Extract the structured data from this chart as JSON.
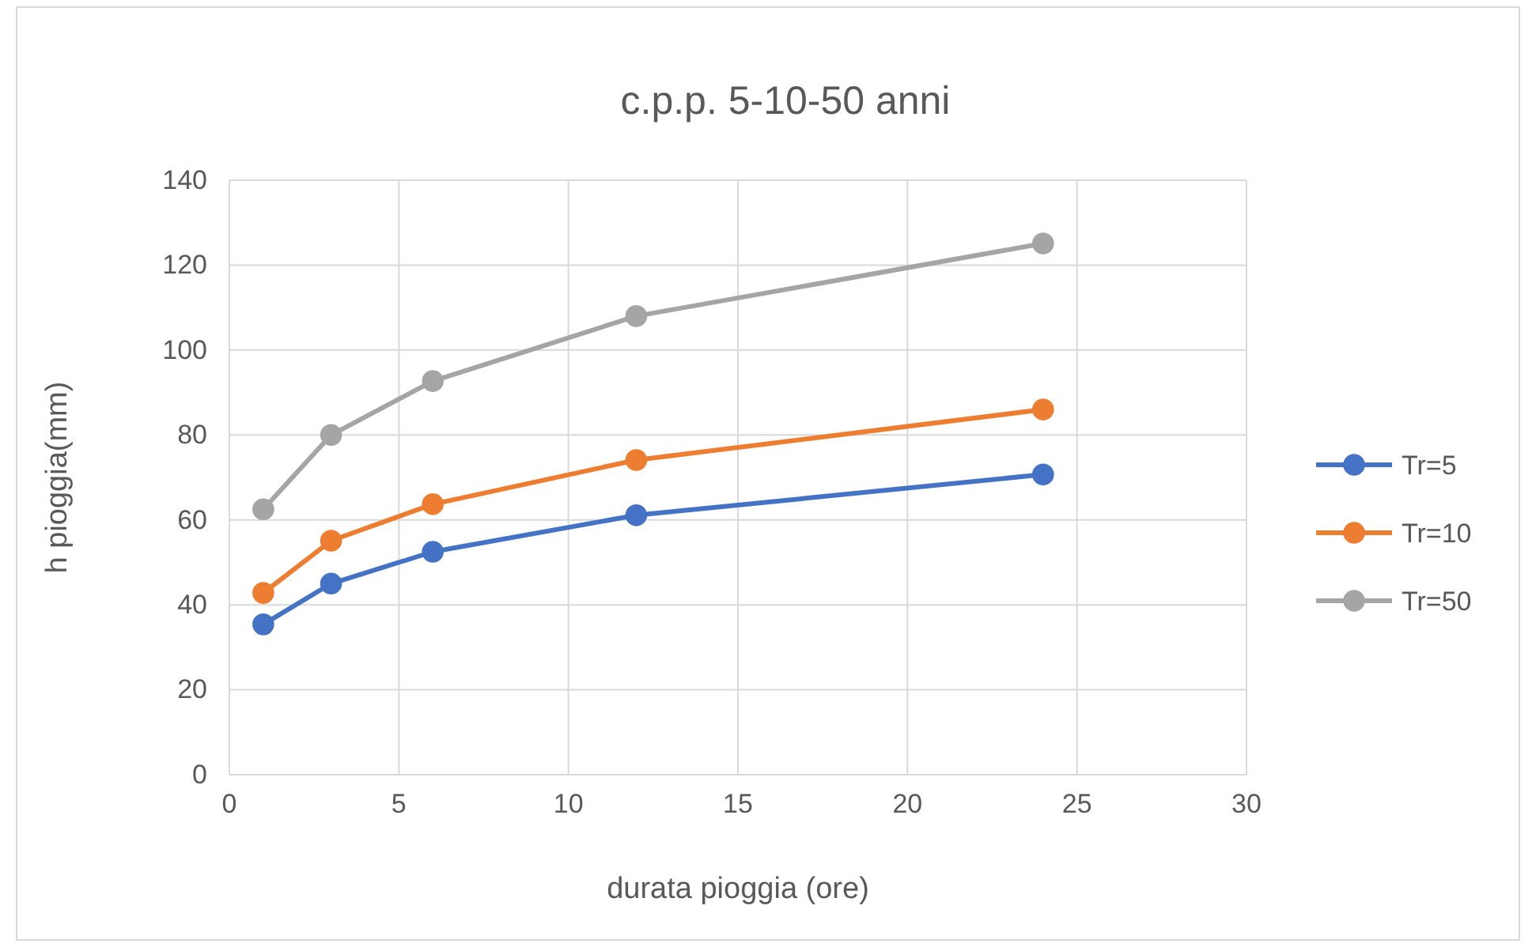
{
  "chart_data": {
    "type": "line",
    "title": "c.p.p.  5-10-50 anni",
    "xlabel": "durata pioggia (ore)",
    "ylabel": "h pioggia(mm)",
    "x": [
      1,
      3,
      6,
      12,
      24
    ],
    "series": [
      {
        "name": "Tr=5",
        "color": "#4472c4",
        "values": [
          35.4,
          45.0,
          52.5,
          61.1,
          70.7
        ]
      },
      {
        "name": "Tr=10",
        "color": "#ed7d31",
        "values": [
          42.8,
          55.1,
          63.7,
          74.1,
          86.0
        ]
      },
      {
        "name": "Tr=50",
        "color": "#a5a5a5",
        "values": [
          62.5,
          80.0,
          92.7,
          108.0,
          125.1
        ]
      }
    ],
    "xlim": [
      0,
      30
    ],
    "xticks": [
      0,
      5,
      10,
      15,
      20,
      25,
      30
    ],
    "ylim": [
      0,
      140
    ],
    "yticks": [
      0,
      20,
      40,
      60,
      80,
      100,
      120,
      140
    ],
    "grid": true,
    "legend": "right",
    "marker": "circle",
    "line_style": "solid"
  }
}
